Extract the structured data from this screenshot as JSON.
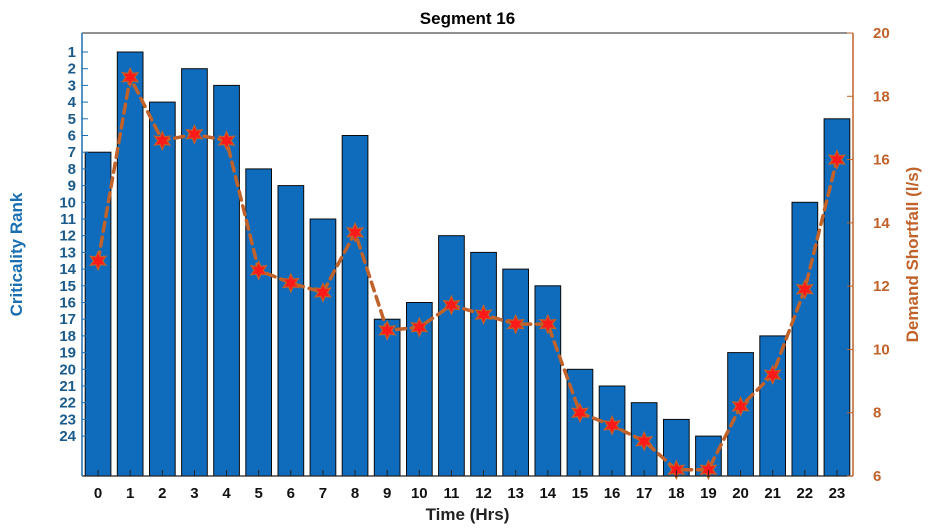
{
  "chart_data": {
    "type": "bar+line",
    "title": "Segment 16",
    "xlabel": "Time (Hrs)",
    "ylabel_left": "Criticality Rank",
    "ylabel_right": "Demand Shortfall (l/s)",
    "categories": [
      "0",
      "1",
      "2",
      "3",
      "4",
      "5",
      "6",
      "7",
      "8",
      "9",
      "10",
      "11",
      "12",
      "13",
      "14",
      "15",
      "16",
      "17",
      "18",
      "19",
      "20",
      "21",
      "22",
      "23"
    ],
    "left_axis": {
      "ticks": [
        "1",
        "2",
        "3",
        "4",
        "5",
        "6",
        "7",
        "8",
        "9",
        "10",
        "11",
        "12",
        "13",
        "14",
        "15",
        "16",
        "17",
        "18",
        "19",
        "20",
        "21",
        "22",
        "23",
        "24"
      ],
      "reversed": true
    },
    "right_axis": {
      "ylim": [
        6,
        20
      ],
      "ticks": [
        "6",
        "8",
        "10",
        "12",
        "14",
        "16",
        "18",
        "20"
      ]
    },
    "series": [
      {
        "kind": "bar",
        "axis": "left",
        "values": [
          7,
          1,
          4,
          2,
          3,
          8,
          9,
          11,
          6,
          17,
          16,
          12,
          13,
          14,
          15,
          20,
          21,
          22,
          23,
          24,
          19,
          18,
          10,
          5
        ]
      },
      {
        "kind": "line",
        "axis": "right",
        "values": [
          12.8,
          18.6,
          16.6,
          16.8,
          16.6,
          12.5,
          12.1,
          11.8,
          13.7,
          10.6,
          10.7,
          11.4,
          11.1,
          10.8,
          10.8,
          8.0,
          7.6,
          7.1,
          6.2,
          6.2,
          8.2,
          9.2,
          11.9,
          16.0
        ]
      }
    ],
    "colors": {
      "bar_fill": "#0f6cbd",
      "bar_stroke": "#0a0a0a",
      "line": "#c0622a",
      "marker": "#ff1a1a",
      "left_axis": "#1b6fb0",
      "right_axis": "#c0622a"
    },
    "grid": false,
    "legend": "none"
  }
}
